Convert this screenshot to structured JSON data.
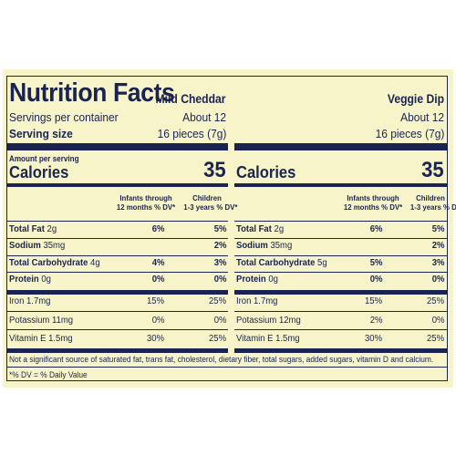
{
  "title": "Nutrition Facts",
  "products": [
    {
      "name": "Mild Cheddar",
      "servings_per_container": "About 12",
      "serving_size": "16 pieces (7g)",
      "calories": "35"
    },
    {
      "name": "Veggie Dip",
      "servings_per_container": "About 12",
      "serving_size": "16 pieces (7g)",
      "calories": "35"
    }
  ],
  "labels": {
    "servings_per_container": "Servings per container",
    "serving_size": "Serving size",
    "amount_per_serving": "Amount per serving",
    "calories": "Calories",
    "infants_l1": "Infants through",
    "infants_l2": "12 months % DV*",
    "children_l1": "Children",
    "children_l2": "1-3 years % DV*"
  },
  "nutrients_left": [
    {
      "name": "Total Fat",
      "amount": "2g",
      "infants": "6%",
      "children": "5%",
      "bold": true
    },
    {
      "name": "Sodium",
      "amount": "35mg",
      "infants": "",
      "children": "2%",
      "bold": true
    },
    {
      "name": "Total Carbohydrate",
      "amount": "4g",
      "infants": "4%",
      "children": "3%",
      "bold": true
    },
    {
      "name": "Protein",
      "amount": "0g",
      "infants": "0%",
      "children": "0%",
      "bold": true
    },
    {
      "name": "Iron",
      "amount": "1.7mg",
      "infants": "15%",
      "children": "25%",
      "bold": false
    },
    {
      "name": "Potassium",
      "amount": "11mg",
      "infants": "0%",
      "children": "0%",
      "bold": false
    },
    {
      "name": "Vitamin E",
      "amount": "1.5mg",
      "infants": "30%",
      "children": "25%",
      "bold": false
    }
  ],
  "nutrients_right": [
    {
      "name": "Total Fat",
      "amount": "2g",
      "infants": "6%",
      "children": "5%",
      "bold": true
    },
    {
      "name": "Sodium",
      "amount": "35mg",
      "infants": "",
      "children": "2%",
      "bold": true
    },
    {
      "name": "Total Carbohydrate",
      "amount": "5g",
      "infants": "5%",
      "children": "3%",
      "bold": true
    },
    {
      "name": "Protein",
      "amount": "0g",
      "infants": "0%",
      "children": "0%",
      "bold": true
    },
    {
      "name": "Iron",
      "amount": "1.7mg",
      "infants": "15%",
      "children": "25%",
      "bold": false
    },
    {
      "name": "Potassium",
      "amount": "12mg",
      "infants": "2%",
      "children": "0%",
      "bold": false
    },
    {
      "name": "Vitamin E",
      "amount": "1.5mg",
      "infants": "30%",
      "children": "25%",
      "bold": false
    }
  ],
  "footnote": "Not a significant source of saturated fat, trans fat, cholesterol, dietary fiber, total sugars, added sugars, vitamin D and calcium.",
  "dv_note": "*% DV = % Daily Value",
  "colors": {
    "ink": "#1b2350",
    "background": "#f6f4c8"
  }
}
